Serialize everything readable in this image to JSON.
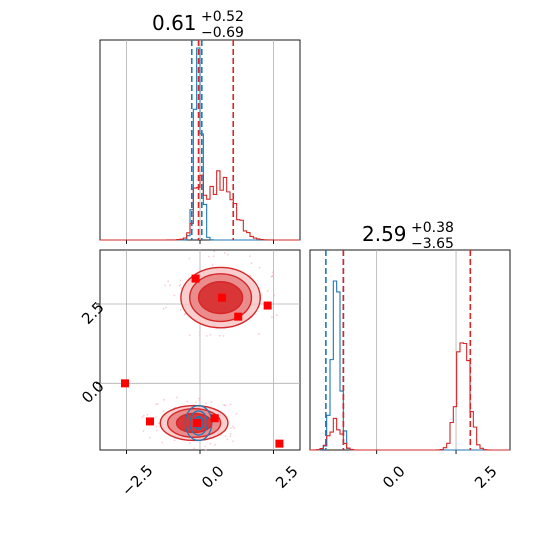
{
  "colors": {
    "blue": "#1f77b4",
    "red": "#d62728",
    "grid": "#b0b0b0",
    "marker": "#ff0000",
    "scatter": "#f4b8c8"
  },
  "chart_data": [
    {
      "type": "histogram",
      "panel": "top-left",
      "title": {
        "value": "0.61",
        "plus": "+0.52",
        "minus": "−0.69"
      },
      "x_range": [
        -3.4,
        3.4
      ],
      "x_ticks": [
        -2.5,
        0.0,
        2.5
      ],
      "grid": true,
      "vlines": [
        {
          "x": -0.28,
          "color": "blue"
        },
        {
          "x": 0.06,
          "color": "blue"
        },
        {
          "x": -0.05,
          "color": "red"
        },
        {
          "x": 1.13,
          "color": "red"
        }
      ],
      "series": [
        {
          "color": "blue",
          "peaks": [
            {
              "x": -0.06,
              "sigma": 0.12,
              "height": 1.0
            }
          ]
        },
        {
          "color": "red",
          "peaks": [
            {
              "x": 0.7,
              "sigma": 0.45,
              "height": 0.31
            },
            {
              "x": -0.05,
              "sigma": 0.15,
              "height": 0.25
            }
          ]
        }
      ]
    },
    {
      "type": "scatter-contour",
      "panel": "bottom-left",
      "x_range": [
        -3.4,
        3.4
      ],
      "y_range": [
        -2.1,
        4.2
      ],
      "x_ticks": [
        -2.5,
        0.0,
        2.5
      ],
      "x_tick_labels": [
        "−2.5",
        "0.0",
        "2.5"
      ],
      "y_ticks": [
        0.0,
        2.5
      ],
      "y_tick_labels": [
        "0.0",
        "2.5"
      ],
      "grid": true,
      "crosshair": {
        "x": 2.5,
        "y": 2.5,
        "y2": 0.0
      },
      "red_markers": [
        {
          "x": -0.15,
          "y": 3.3
        },
        {
          "x": 0.75,
          "y": 2.7
        },
        {
          "x": 1.3,
          "y": 2.1
        },
        {
          "x": 2.3,
          "y": 2.45
        },
        {
          "x": -2.55,
          "y": 0.0
        },
        {
          "x": -1.7,
          "y": -1.2
        },
        {
          "x": 0.5,
          "y": -1.1
        },
        {
          "x": 2.7,
          "y": -1.9
        },
        {
          "x": -0.1,
          "y": -1.25
        }
      ],
      "contours": {
        "red": [
          {
            "cx": 0.7,
            "cy": 2.7,
            "rx": [
              1.35,
              1.05,
              0.75
            ],
            "ry": [
              0.95,
              0.75,
              0.5
            ]
          },
          {
            "cx": -0.2,
            "cy": -1.25,
            "rx": [
              1.15,
              0.9,
              0.6
            ],
            "ry": [
              0.55,
              0.45,
              0.3
            ]
          }
        ],
        "blue": [
          {
            "cx": -0.05,
            "cy": -1.25,
            "rx": [
              0.45,
              0.3,
              0.17
            ],
            "ry": [
              0.55,
              0.38,
              0.2
            ]
          }
        ]
      }
    },
    {
      "type": "histogram",
      "panel": "bottom-right",
      "title": {
        "value": "2.59",
        "plus": "+0.38",
        "minus": "−3.65"
      },
      "x_range": [
        -2.1,
        4.2
      ],
      "x_ticks": [
        0.0,
        2.5
      ],
      "x_tick_labels": [
        "0.0",
        "2.5"
      ],
      "grid": true,
      "vlines": [
        {
          "x": -1.6,
          "color": "blue"
        },
        {
          "x": -1.05,
          "color": "blue"
        },
        {
          "x": -1.05,
          "color": "red"
        },
        {
          "x": 2.95,
          "color": "red"
        }
      ],
      "series": [
        {
          "color": "blue",
          "peaks": [
            {
              "x": -1.28,
              "sigma": 0.13,
              "height": 0.9
            }
          ]
        },
        {
          "color": "red",
          "peaks": [
            {
              "x": 2.72,
              "sigma": 0.2,
              "height": 0.6
            },
            {
              "x": -1.3,
              "sigma": 0.18,
              "height": 0.14
            }
          ]
        }
      ]
    }
  ]
}
